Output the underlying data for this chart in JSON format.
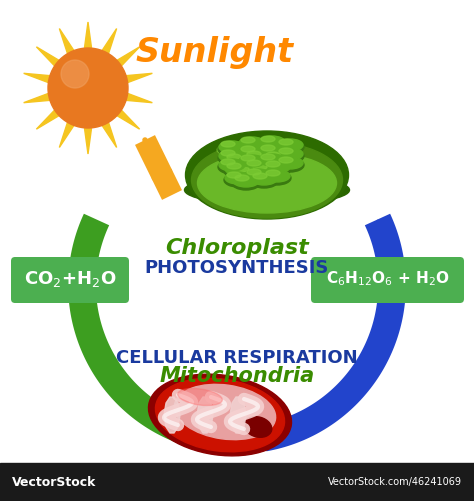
{
  "background_color": "#ffffff",
  "sunlight_text": "Sunlight",
  "sunlight_color": "#ff8800",
  "sun_body_color": "#e87820",
  "sun_body_color2": "#d46010",
  "sun_ray_color": "#f5c520",
  "sun_highlight": "#f0a040",
  "chloroplast_label": "Chloroplast",
  "photosynthesis_label": "PHOTOSYNTHESIS",
  "chloroplast_label_color": "#3a8c00",
  "photosynthesis_label_color": "#1a3a9f",
  "respiration_label": "CELLULAR RESPIRATION",
  "mitochondria_label": "Mitochondria",
  "respiration_label_color": "#1a3a9f",
  "mitochondria_label_color": "#3a8c00",
  "co2_box_text_main": "CO",
  "co2_box_text_sub2": "2",
  "co2_box_text_plus": "+H",
  "co2_box_text_sub2b": "2",
  "co2_box_text_o": "O",
  "glucose_box_text": "C₆H₁₂O₆ + H₂O",
  "box_bg_color": "#4caf50",
  "box_text_color": "#ffffff",
  "green_arrow_color": "#3d9e20",
  "blue_arrow_color": "#2244cc",
  "orange_arrow_color": "#f5a820",
  "watermark": "VectorStock",
  "watermark2": "VectorStock.com/46241069",
  "footer_bg": "#1a1a1a",
  "footer_text_color": "#ffffff"
}
